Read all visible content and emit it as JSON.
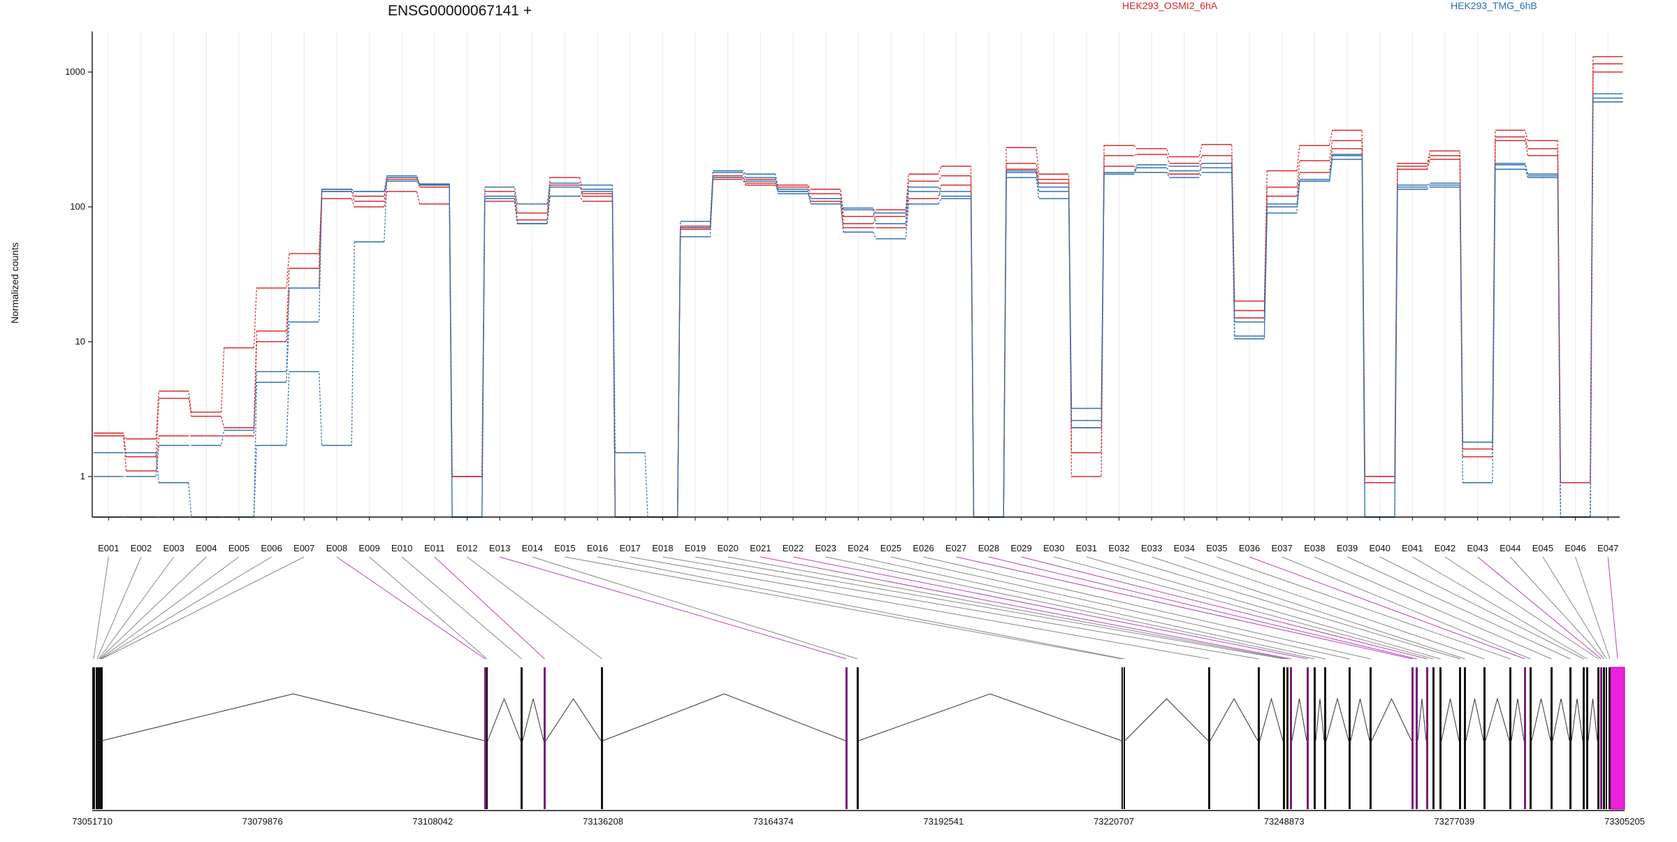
{
  "chart_data": {
    "type": "line",
    "title": "ENSG00000067141 +",
    "ylabel": "Normalized counts",
    "xlabel": "",
    "y_scale": "log",
    "ylim": [
      0.5,
      2000
    ],
    "y_ticks": [
      1,
      10,
      100,
      1000
    ],
    "y_tick_labels": [
      "1",
      "10",
      "100",
      "1000"
    ],
    "grid": "vertical faint lines at exon bins",
    "legend_position": "top",
    "categories": [
      "E001",
      "E002",
      "E003",
      "E004",
      "E005",
      "E006",
      "E007",
      "E008",
      "E009",
      "E010",
      "E011",
      "E012",
      "E013",
      "E014",
      "E015",
      "E016",
      "E017",
      "E018",
      "E019",
      "E020",
      "E021",
      "E022",
      "E023",
      "E024",
      "E025",
      "E026",
      "E027",
      "E028",
      "E029",
      "E030",
      "E031",
      "E032",
      "E033",
      "E034",
      "E035",
      "E036",
      "E037",
      "E038",
      "E039",
      "E040",
      "E041",
      "E042",
      "E043",
      "E044",
      "E045",
      "E046",
      "E047"
    ],
    "series": [
      {
        "name": "HEK293_OSMI2_6hA",
        "color": "#d62728",
        "dash": "dashed",
        "values": [
          2.0,
          1.9,
          4.3,
          3.0,
          9.0,
          25,
          45,
          135,
          120,
          165,
          145,
          1.0,
          130,
          90,
          165,
          125,
          0.5,
          0.5,
          72,
          165,
          160,
          145,
          135,
          85,
          95,
          175,
          200,
          0.5,
          275,
          175,
          1.0,
          285,
          270,
          235,
          290,
          20,
          185,
          285,
          370,
          1.0,
          210,
          260,
          1.8,
          370,
          310,
          0.9,
          1300
        ]
      },
      {
        "name": "HEK293_OSMI2_6hA",
        "color": "#d62728",
        "dash": "dashed",
        "values": [
          2.1,
          1.4,
          3.8,
          2.8,
          2.3,
          12,
          35,
          130,
          110,
          160,
          140,
          1.0,
          120,
          80,
          145,
          120,
          0.5,
          0.5,
          70,
          170,
          150,
          140,
          125,
          75,
          85,
          155,
          170,
          0.5,
          210,
          160,
          2.3,
          240,
          245,
          210,
          240,
          17,
          140,
          220,
          310,
          1.0,
          200,
          240,
          1.6,
          330,
          270,
          0.9,
          1150
        ]
      },
      {
        "name": "HEK293_OSMI2_6hA",
        "color": "#d62728",
        "dash": "dashed",
        "values": [
          2.0,
          1.1,
          2.0,
          2.0,
          2.0,
          10,
          25,
          115,
          100,
          130,
          105,
          1.0,
          110,
          75,
          120,
          110,
          0.5,
          0.5,
          68,
          160,
          145,
          130,
          110,
          70,
          70,
          115,
          145,
          0.5,
          190,
          150,
          1.5,
          200,
          180,
          175,
          210,
          15,
          120,
          180,
          270,
          0.9,
          190,
          225,
          1.4,
          310,
          240,
          0.9,
          1000
        ]
      },
      {
        "name": "HEK293_TMG_6hB",
        "color": "#2c6fac",
        "dash": "dashed",
        "values": [
          1.0,
          1.0,
          1.7,
          1.7,
          2.2,
          6.0,
          25,
          135,
          130,
          170,
          148,
          0.5,
          140,
          105,
          150,
          145,
          1.5,
          0.5,
          78,
          185,
          175,
          135,
          115,
          98,
          90,
          140,
          130,
          0.5,
          185,
          140,
          3.2,
          180,
          205,
          200,
          210,
          14,
          105,
          160,
          245,
          0.5,
          145,
          150,
          1.8,
          210,
          175,
          0.5,
          690
        ]
      },
      {
        "name": "HEK293_TMG_6hB",
        "color": "#2c6fac",
        "dash": "dashed",
        "values": [
          1.5,
          1.5,
          0.9,
          0.5,
          0.5,
          5.0,
          14,
          130,
          130,
          155,
          148,
          0.5,
          120,
          75,
          140,
          135,
          0.5,
          0.5,
          70,
          180,
          165,
          130,
          115,
          95,
          75,
          130,
          120,
          0.5,
          180,
          130,
          2.6,
          175,
          195,
          185,
          195,
          11,
          100,
          155,
          240,
          0.5,
          140,
          145,
          1.8,
          205,
          170,
          0.5,
          640
        ]
      },
      {
        "name": "HEK293_TMG_6hB",
        "color": "#2c6fac",
        "dash": "dashed",
        "values": [
          0.5,
          0.5,
          0.5,
          0.5,
          0.5,
          1.7,
          6.0,
          1.7,
          55,
          165,
          145,
          0.5,
          115,
          75,
          120,
          130,
          0.5,
          0.5,
          60,
          165,
          155,
          125,
          105,
          65,
          58,
          105,
          115,
          0.5,
          165,
          115,
          2.3,
          180,
          180,
          165,
          180,
          10.5,
          90,
          155,
          225,
          0.5,
          135,
          140,
          0.9,
          190,
          165,
          0.5,
          600
        ]
      }
    ],
    "genomic_axis": {
      "tick_labels": [
        "73051710",
        "73079876",
        "73108042",
        "73136208",
        "73164374",
        "73192541",
        "73220707",
        "73248873",
        "73277039",
        "73305205"
      ],
      "start": 73051710,
      "end": 73305205
    },
    "exon_highlight": [
      "E008",
      "E011",
      "E013",
      "E021",
      "E022",
      "E027",
      "E028",
      "E029",
      "E036",
      "E043",
      "E047"
    ]
  }
}
